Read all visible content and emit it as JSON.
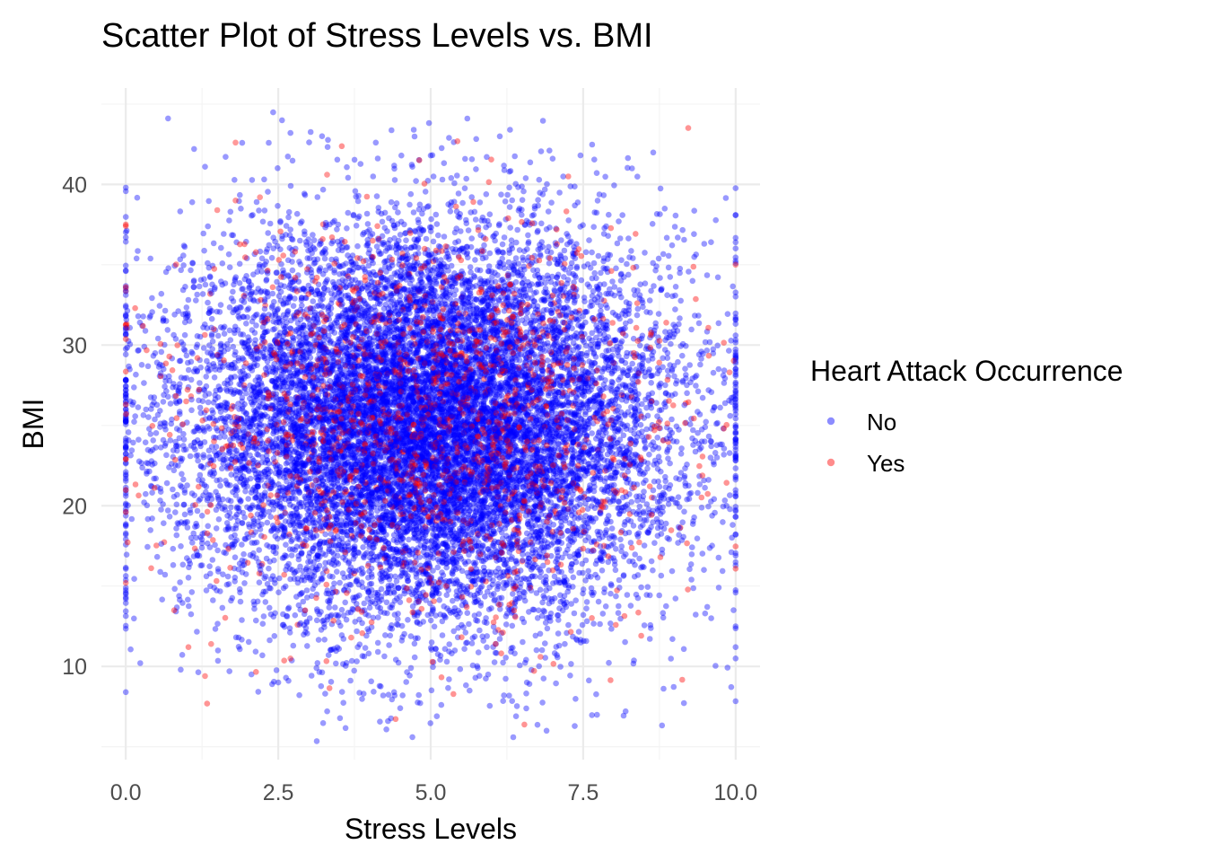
{
  "chart_data": {
    "type": "scatter",
    "title": "Scatter Plot of Stress Levels vs. BMI",
    "xlabel": "Stress Levels",
    "ylabel": "BMI",
    "xlim": [
      -0.4,
      10.4
    ],
    "ylim": [
      4.2,
      46.0
    ],
    "x_ticks": [
      0.0,
      2.5,
      5.0,
      7.5,
      10.0
    ],
    "x_tick_labels": [
      "0.0",
      "2.5",
      "5.0",
      "7.5",
      "10.0"
    ],
    "y_ticks": [
      10,
      20,
      30,
      40
    ],
    "y_tick_labels": [
      "10",
      "20",
      "30",
      "40"
    ],
    "grid": true,
    "legend": {
      "title": "Heart Attack Occurrence",
      "position": "right",
      "entries": [
        {
          "label": "No",
          "color": "#0000ff"
        },
        {
          "label": "Yes",
          "color": "#ff0000"
        }
      ]
    },
    "series": [
      {
        "name": "No",
        "color": "#0000ff",
        "opacity": 0.4,
        "distribution": {
          "x_mean": 5.0,
          "x_sd": 2.0,
          "y_mean": 25.0,
          "y_sd": 6.0
        },
        "points": [
          [
            5.6,
            44.1
          ],
          [
            6.3,
            43.4
          ],
          [
            2.7,
            43.2
          ],
          [
            5.3,
            42.9
          ],
          [
            4.1,
            42.6
          ],
          [
            5.0,
            41.8
          ],
          [
            7.0,
            41.6
          ],
          [
            1.3,
            41.1
          ],
          [
            8.3,
            41.0
          ],
          [
            4.7,
            41.1
          ],
          [
            0.0,
            39.8
          ],
          [
            10.0,
            38.1
          ],
          [
            0.0,
            36.7
          ],
          [
            10.0,
            36.4
          ],
          [
            4.7,
            5.6
          ],
          [
            6.9,
            6.0
          ],
          [
            4.3,
            6.6
          ],
          [
            5.1,
            6.9
          ],
          [
            6.4,
            6.9
          ],
          [
            4.5,
            7.4
          ],
          [
            6.2,
            8.2
          ],
          [
            3.9,
            8.3
          ],
          [
            4.4,
            8.4
          ],
          [
            2.4,
            8.9
          ],
          [
            2.5,
            9.0
          ],
          [
            5.3,
            9.2
          ],
          [
            0.9,
            9.8
          ],
          [
            1.7,
            9.7
          ],
          [
            10.0,
            10.5
          ],
          [
            10.0,
            11.2
          ],
          [
            0.0,
            14.3
          ],
          [
            0.0,
            14.9
          ],
          [
            10.0,
            14.6
          ],
          [
            9.5,
            13.3
          ],
          [
            9.6,
            13.0
          ]
        ]
      },
      {
        "name": "Yes",
        "color": "#ff0000",
        "opacity": 0.4,
        "distribution": {
          "x_mean": 5.0,
          "x_sd": 2.0,
          "y_mean": 25.0,
          "y_sd": 6.0
        },
        "points": [
          [
            1.8,
            42.6
          ],
          [
            3.3,
            40.6
          ],
          [
            1.8,
            39.0
          ],
          [
            2.2,
            39.2
          ],
          [
            1.5,
            38.4
          ],
          [
            5.9,
            36.6
          ],
          [
            1.3,
            9.4
          ],
          [
            2.7,
            10.5
          ],
          [
            1.4,
            11.4
          ],
          [
            6.8,
            10.6
          ],
          [
            9.9,
            28.3
          ],
          [
            0.0,
            15.2
          ],
          [
            10.0,
            35.0
          ],
          [
            0.0,
            26.3
          ],
          [
            0.0,
            22.9
          ]
        ]
      }
    ]
  }
}
